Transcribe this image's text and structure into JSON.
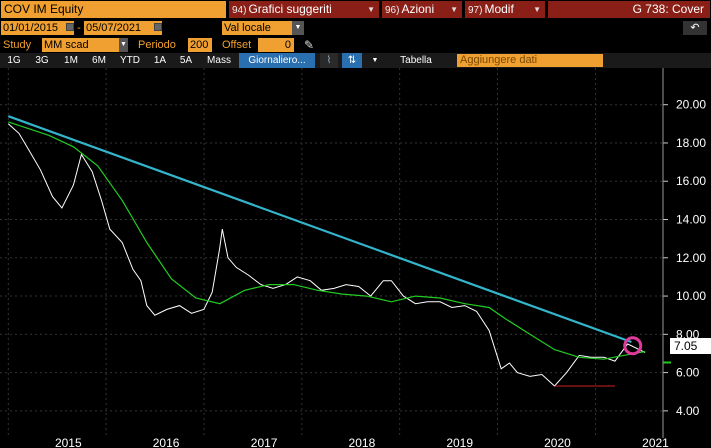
{
  "header": {
    "security": "COV IM Equity",
    "menus": [
      {
        "num": "94)",
        "label": "Grafici suggeriti"
      },
      {
        "num": "96)",
        "label": "Azioni"
      },
      {
        "num": "97)",
        "label": "Modif"
      }
    ],
    "function_title": "G 738: Cover"
  },
  "range": {
    "start_date": "01/01/2015",
    "end_date": "05/07/2021",
    "currency": "Val locale"
  },
  "study": {
    "label": "Study",
    "value": "MM scad",
    "period_label": "Periodo",
    "period_value": "200",
    "offset_label": "Offset",
    "offset_value": "0"
  },
  "toolbar": {
    "periods": [
      "1G",
      "3G",
      "1M",
      "6M",
      "YTD",
      "1A",
      "5A",
      "Mass"
    ],
    "frequency": "Giornaliero...",
    "table_label": "Tabella",
    "add_data_placeholder": "Aggiungere dati",
    "back_icon": "↶"
  },
  "colors": {
    "price": "#ffffff",
    "moving_average": "#22cc22",
    "trendline": "#33b5cc",
    "marker_circle": "#e03a9a",
    "support_line": "#cc2222",
    "accent": "#f0a030",
    "menu_bg": "#8a1f17"
  },
  "chart_data": {
    "type": "line",
    "x_labels": [
      "2015",
      "2016",
      "2017",
      "2018",
      "2019",
      "2020",
      "2021"
    ],
    "y_ticks": [
      "20.00",
      "18.00",
      "16.00",
      "14.00",
      "12.00",
      "10.00",
      "8.00",
      "6.00",
      "4.00"
    ],
    "ylim": [
      3.0,
      21.5
    ],
    "last_price": "7.05",
    "grid": true,
    "series": [
      {
        "values": [
          [
            "2015-01-01",
            19.0
          ],
          [
            "2015-02-10",
            18.5
          ],
          [
            "2015-03-20",
            17.6
          ],
          [
            "2015-05-01",
            16.6
          ],
          [
            "2015-06-15",
            15.2
          ],
          [
            "2015-07-20",
            14.6
          ],
          [
            "2015-09-01",
            15.8
          ],
          [
            "2015-10-01",
            17.4
          ],
          [
            "2015-11-10",
            16.5
          ],
          [
            "2015-12-15",
            15.0
          ],
          [
            "2016-01-15",
            13.5
          ],
          [
            "2016-03-01",
            12.8
          ],
          [
            "2016-04-10",
            11.4
          ],
          [
            "2016-05-10",
            10.8
          ],
          [
            "2016-06-01",
            9.5
          ],
          [
            "2016-07-01",
            9.0
          ],
          [
            "2016-08-15",
            9.3
          ],
          [
            "2016-10-01",
            9.5
          ],
          [
            "2016-11-15",
            9.1
          ],
          [
            "2016-12-31",
            9.3
          ],
          [
            "2017-01-31",
            10.2
          ],
          [
            "2017-02-28",
            12.5
          ],
          [
            "2017-03-10",
            13.5
          ],
          [
            "2017-03-31",
            12.0
          ],
          [
            "2017-05-01",
            11.5
          ],
          [
            "2017-06-15",
            11.1
          ],
          [
            "2017-08-01",
            10.6
          ],
          [
            "2017-09-15",
            10.4
          ],
          [
            "2017-11-01",
            10.6
          ],
          [
            "2017-12-15",
            11.0
          ],
          [
            "2018-02-01",
            10.8
          ],
          [
            "2018-03-15",
            10.3
          ],
          [
            "2018-05-01",
            10.4
          ],
          [
            "2018-06-15",
            10.6
          ],
          [
            "2018-08-01",
            10.5
          ],
          [
            "2018-09-15",
            10.0
          ],
          [
            "2018-11-01",
            10.8
          ],
          [
            "2018-12-01",
            10.8
          ],
          [
            "2019-01-15",
            10.0
          ],
          [
            "2019-03-01",
            9.6
          ],
          [
            "2019-04-15",
            9.7
          ],
          [
            "2019-06-01",
            9.7
          ],
          [
            "2019-07-15",
            9.4
          ],
          [
            "2019-09-01",
            9.5
          ],
          [
            "2019-10-15",
            9.2
          ],
          [
            "2019-12-01",
            8.2
          ],
          [
            "2020-01-15",
            6.2
          ],
          [
            "2020-02-15",
            6.5
          ],
          [
            "2020-03-15",
            6.0
          ],
          [
            "2020-05-01",
            5.8
          ],
          [
            "2020-06-15",
            5.9
          ],
          [
            "2020-08-01",
            5.3
          ],
          [
            "2020-09-15",
            6.0
          ],
          [
            "2020-11-01",
            6.9
          ],
          [
            "2020-12-15",
            6.8
          ],
          [
            "2021-02-01",
            6.8
          ],
          [
            "2021-03-15",
            6.6
          ],
          [
            "2021-05-01",
            7.5
          ],
          [
            "2021-07-05",
            7.05
          ]
        ]
      },
      {
        "values": [
          [
            "2015-01-01",
            19.1
          ],
          [
            "2015-06-01",
            18.4
          ],
          [
            "2015-09-01",
            17.8
          ],
          [
            "2015-12-01",
            16.8
          ],
          [
            "2016-03-01",
            15.0
          ],
          [
            "2016-06-01",
            12.8
          ],
          [
            "2016-09-01",
            10.9
          ],
          [
            "2016-12-01",
            9.9
          ],
          [
            "2017-03-01",
            9.6
          ],
          [
            "2017-06-01",
            10.3
          ],
          [
            "2017-09-01",
            10.6
          ],
          [
            "2017-12-01",
            10.6
          ],
          [
            "2018-03-01",
            10.3
          ],
          [
            "2018-06-01",
            10.1
          ],
          [
            "2018-09-01",
            10.0
          ],
          [
            "2018-12-01",
            9.7
          ],
          [
            "2019-03-01",
            10.0
          ],
          [
            "2019-06-01",
            9.9
          ],
          [
            "2019-09-01",
            9.6
          ],
          [
            "2019-12-01",
            9.4
          ],
          [
            "2020-02-01",
            8.8
          ],
          [
            "2020-05-01",
            8.0
          ],
          [
            "2020-08-01",
            7.2
          ],
          [
            "2020-11-01",
            6.8
          ],
          [
            "2021-02-01",
            6.7
          ],
          [
            "2021-07-05",
            7.1
          ]
        ]
      },
      {
        "values": [
          [
            "2015-01-01",
            19.4
          ],
          [
            "2021-05-15",
            7.6
          ]
        ]
      },
      {
        "values": [
          [
            "2020-08-01",
            5.3
          ],
          [
            "2021-03-15",
            5.3
          ]
        ]
      }
    ],
    "marker": {
      "x": "2021-05-20",
      "y": 7.4
    }
  }
}
